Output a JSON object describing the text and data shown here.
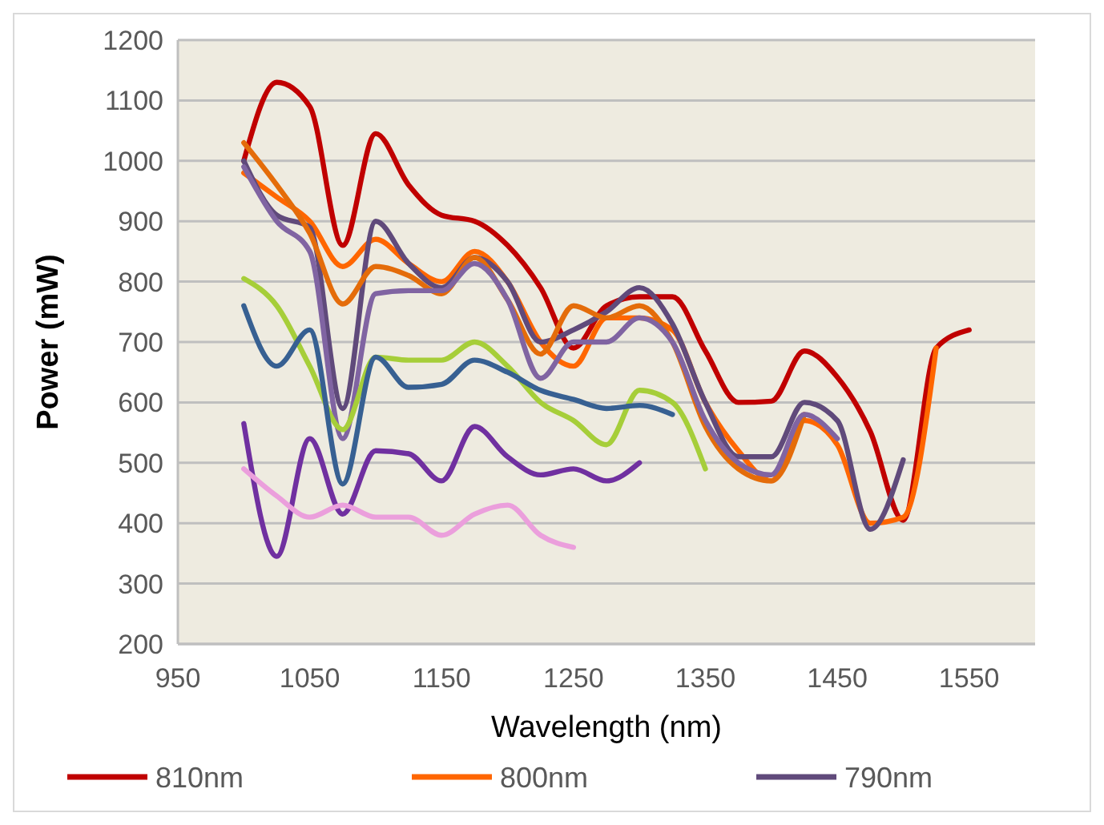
{
  "chart_data": {
    "type": "line",
    "xlabel": "Wavelength (nm)",
    "ylabel": "Power (mW)",
    "xlim": [
      950,
      1600
    ],
    "xticks": [
      950,
      1050,
      1150,
      1250,
      1350,
      1450,
      1550
    ],
    "ylim": [
      200,
      1200
    ],
    "yticks": [
      200,
      300,
      400,
      500,
      600,
      700,
      800,
      900,
      1000,
      1100,
      1200
    ],
    "grid": "y",
    "legend": "bottom",
    "marker": "none",
    "line_style": "solid",
    "x": [
      1000,
      1025,
      1050,
      1075,
      1100,
      1125,
      1150,
      1175,
      1200,
      1225,
      1250,
      1275,
      1300,
      1325,
      1350,
      1375,
      1400,
      1425,
      1450,
      1475,
      1500,
      1525,
      1550
    ],
    "series": [
      {
        "name": "810nm",
        "color": "#c00000",
        "values": [
          1000,
          1130,
          1090,
          860,
          1045,
          960,
          910,
          900,
          860,
          790,
          690,
          760,
          775,
          775,
          685,
          600,
          602,
          685,
          642,
          552,
          405,
          690,
          720
        ]
      },
      {
        "name": "800nm",
        "color": "#ff6600",
        "values": [
          980,
          940,
          900,
          825,
          870,
          830,
          800,
          850,
          800,
          700,
          660,
          740,
          740,
          720,
          600,
          520,
          470,
          570,
          530,
          400,
          410,
          690,
          null
        ]
      },
      {
        "name": "790nm",
        "color": "#604a7b",
        "values": [
          1000,
          910,
          890,
          590,
          900,
          830,
          790,
          840,
          800,
          700,
          720,
          750,
          790,
          730,
          600,
          510,
          510,
          600,
          570,
          390,
          505,
          null,
          null
        ]
      },
      {
        "color": "#e46c0a",
        "values": [
          1030,
          960,
          880,
          763,
          825,
          810,
          780,
          840,
          770,
          680,
          760,
          740,
          760,
          700,
          560,
          490,
          470,
          580,
          null,
          null,
          null,
          null,
          null
        ]
      },
      {
        "color": "#8064a2",
        "values": [
          990,
          900,
          850,
          540,
          780,
          785,
          785,
          830,
          770,
          640,
          700,
          700,
          740,
          700,
          570,
          500,
          480,
          580,
          540,
          null,
          null,
          null,
          null
        ]
      },
      {
        "color": "#a6ce39",
        "values": [
          805,
          760,
          660,
          555,
          675,
          670,
          670,
          700,
          660,
          600,
          570,
          530,
          620,
          600,
          490,
          null,
          null,
          null,
          null,
          null,
          null,
          null,
          null
        ]
      },
      {
        "color": "#376092",
        "values": [
          760,
          660,
          720,
          465,
          675,
          625,
          630,
          670,
          650,
          620,
          605,
          590,
          595,
          580,
          null,
          null,
          null,
          null,
          null,
          null,
          null,
          null,
          null
        ]
      },
      {
        "color": "#7030a0",
        "values": [
          565,
          345,
          540,
          415,
          520,
          515,
          470,
          560,
          510,
          480,
          490,
          470,
          500,
          null,
          null,
          null,
          null,
          null,
          null,
          null,
          null,
          null,
          null
        ]
      },
      {
        "color": "#eb9fdc",
        "values": [
          490,
          445,
          410,
          430,
          410,
          410,
          380,
          415,
          430,
          380,
          360,
          null,
          null,
          null,
          null,
          null,
          null,
          null,
          null,
          null,
          null,
          null,
          null
        ]
      }
    ]
  }
}
